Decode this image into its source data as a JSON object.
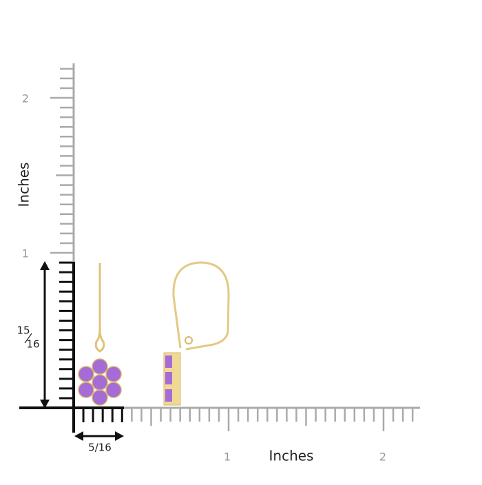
{
  "y_axis": {
    "label": "Inches",
    "ticks": [
      "1",
      "2"
    ]
  },
  "x_axis": {
    "label": "Inches",
    "ticks": [
      "1",
      "2"
    ]
  },
  "height_dimension": {
    "numerator": "15",
    "denominator": "16"
  },
  "width_dimension": "5/16"
}
